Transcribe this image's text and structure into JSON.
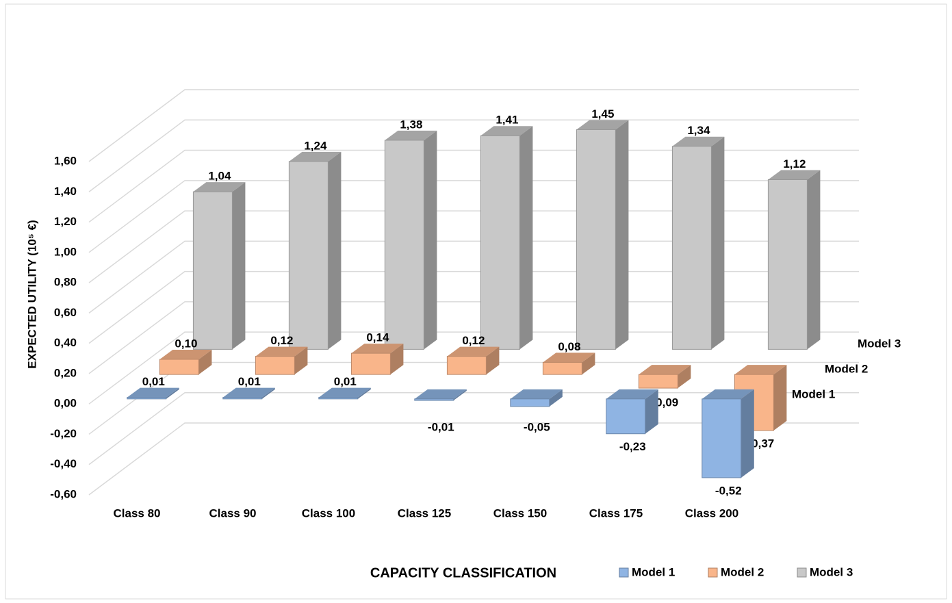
{
  "chart_data": {
    "type": "bar3d",
    "xlabel": "CAPACITY CLASSIFICATION",
    "ylabel": "EXPECTED UTILITY (10⁵ €)",
    "categories": [
      "Class 80",
      "Class 90",
      "Class 100",
      "Class 125",
      "Class 150",
      "Class 175",
      "Class 200"
    ],
    "series": [
      {
        "name": "Model 1",
        "color": "#8fb4e3",
        "values": [
          0.01,
          0.01,
          0.01,
          -0.01,
          -0.05,
          -0.23,
          -0.52
        ],
        "value_labels": [
          "0,01",
          "0,01",
          "0,01",
          "-0,01",
          "-0,05",
          "-0,23",
          "-0,52"
        ]
      },
      {
        "name": "Model 2",
        "color": "#f9b58a",
        "values": [
          0.1,
          0.12,
          0.14,
          0.12,
          0.08,
          -0.09,
          -0.37
        ],
        "value_labels": [
          "0,10",
          "0,12",
          "0,14",
          "0,12",
          "0,08",
          "-0,09",
          "-0,37"
        ]
      },
      {
        "name": "Model 3",
        "color": "#c8c8c8",
        "values": [
          1.04,
          1.24,
          1.38,
          1.41,
          1.45,
          1.34,
          1.12
        ],
        "value_labels": [
          "1,04",
          "1,24",
          "1,38",
          "1,41",
          "1,45",
          "1,34",
          "1,12"
        ]
      }
    ],
    "ylim": [
      -0.6,
      1.6
    ],
    "yticks": [
      {
        "value": -0.6,
        "label": "-0,60"
      },
      {
        "value": -0.4,
        "label": "-0,40"
      },
      {
        "value": -0.2,
        "label": "-0,20"
      },
      {
        "value": 0,
        "label": "0,00"
      },
      {
        "value": 0.2,
        "label": "0,20"
      },
      {
        "value": 0.4,
        "label": "0,40"
      },
      {
        "value": 0.6,
        "label": "0,60"
      },
      {
        "value": 0.8,
        "label": "0,80"
      },
      {
        "value": 1.0,
        "label": "1,00"
      },
      {
        "value": 1.2,
        "label": "1,20"
      },
      {
        "value": 1.4,
        "label": "1,40"
      },
      {
        "value": 1.6,
        "label": "1,60"
      }
    ],
    "grid": true,
    "legend": "bottom"
  }
}
